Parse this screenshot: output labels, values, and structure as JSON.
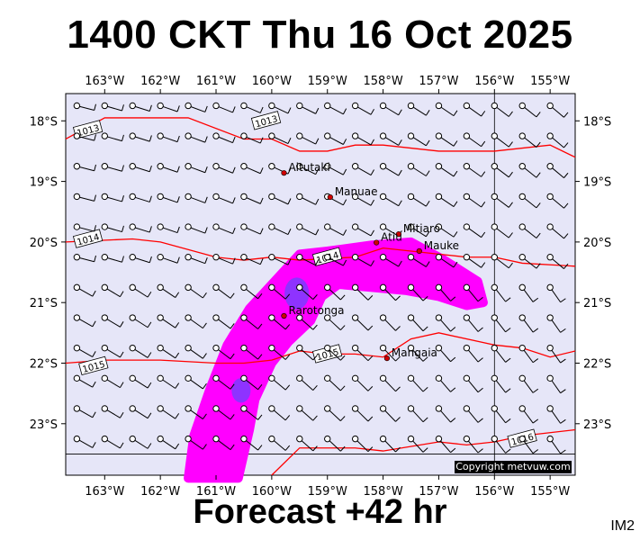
{
  "title": "1400 CKT Thu 16 Oct 2025",
  "subtitle": "Forecast +42 hr",
  "model_label": "IM2",
  "copyright": "Copyright metvuw.com",
  "colors": {
    "background": "#e6e6f8",
    "isobar": "#ff0000",
    "rain_light": "#ff00ff",
    "rain_heavy": "#7a3cff"
  },
  "lon_labels": [
    "163°W",
    "162°W",
    "161°W",
    "160°W",
    "159°W",
    "158°W",
    "157°W",
    "156°W",
    "155°W"
  ],
  "lat_labels": [
    "18°S",
    "19°S",
    "20°S",
    "21°S",
    "22°S",
    "23°S"
  ],
  "chart_data": {
    "type": "map",
    "lon_range": [
      -163.7,
      -154.55
    ],
    "lat_range": [
      -23.85,
      -17.55
    ],
    "longitudes": [
      -163,
      -162,
      -161,
      -160,
      -159,
      -158,
      -157,
      -156,
      -155
    ],
    "latitudes": [
      -18,
      -19,
      -20,
      -21,
      -22,
      -23
    ],
    "isobars": [
      {
        "label": "1013",
        "label_at": [
          -160.1,
          -18.0
        ],
        "label_at2": [
          -163.3,
          -18.15
        ],
        "points": [
          [
            -163.7,
            -18.3
          ],
          [
            -163.0,
            -17.95
          ],
          [
            -162.0,
            -17.95
          ],
          [
            -161.5,
            -17.95
          ],
          [
            -160.5,
            -18.3
          ],
          [
            -160.0,
            -18.3
          ],
          [
            -159.5,
            -18.5
          ],
          [
            -159.0,
            -18.5
          ],
          [
            -158.5,
            -18.4
          ],
          [
            -158.0,
            -18.4
          ],
          [
            -157.0,
            -18.5
          ],
          [
            -156.0,
            -18.5
          ],
          [
            -155.0,
            -18.4
          ],
          [
            -154.55,
            -18.6
          ]
        ]
      },
      {
        "label": "1014",
        "label_at": [
          -159.0,
          -20.25
        ],
        "label_at2": [
          -163.3,
          -19.95
        ],
        "points": [
          [
            -163.7,
            -20.0
          ],
          [
            -162.5,
            -19.95
          ],
          [
            -162.0,
            -20.0
          ],
          [
            -161.0,
            -20.25
          ],
          [
            -160.5,
            -20.3
          ],
          [
            -160.0,
            -20.25
          ],
          [
            -159.5,
            -20.3
          ],
          [
            -158.5,
            -20.25
          ],
          [
            -158.0,
            -20.1
          ],
          [
            -157.5,
            -20.15
          ],
          [
            -157.0,
            -20.2
          ],
          [
            -156.5,
            -20.25
          ],
          [
            -156.0,
            -20.25
          ],
          [
            -155.5,
            -20.35
          ],
          [
            -154.55,
            -20.4
          ]
        ]
      },
      {
        "label": "1015",
        "label_at": [
          -159.0,
          -21.85
        ],
        "label_at2": [
          -163.2,
          -22.05
        ],
        "points": [
          [
            -163.7,
            -22.0
          ],
          [
            -163.0,
            -21.95
          ],
          [
            -162.0,
            -21.95
          ],
          [
            -161.0,
            -22.0
          ],
          [
            -160.5,
            -22.0
          ],
          [
            -160.0,
            -21.95
          ],
          [
            -159.5,
            -21.8
          ],
          [
            -159.0,
            -21.85
          ],
          [
            -158.5,
            -21.85
          ],
          [
            -158.0,
            -21.9
          ],
          [
            -157.5,
            -21.6
          ],
          [
            -157.0,
            -21.5
          ],
          [
            -156.0,
            -21.7
          ],
          [
            -155.5,
            -21.75
          ],
          [
            -155.0,
            -21.9
          ],
          [
            -154.55,
            -21.8
          ]
        ]
      },
      {
        "label": "1016",
        "label_at": [
          -155.5,
          -23.25
        ],
        "label_at2": null,
        "points": [
          [
            -160.0,
            -23.85
          ],
          [
            -159.5,
            -23.4
          ],
          [
            -158.5,
            -23.4
          ],
          [
            -158.0,
            -23.45
          ],
          [
            -157.0,
            -23.3
          ],
          [
            -156.5,
            -23.35
          ],
          [
            -156.0,
            -23.3
          ],
          [
            -155.5,
            -23.2
          ],
          [
            -154.55,
            -23.1
          ]
        ]
      }
    ],
    "places": [
      {
        "name": "Aitutaki",
        "lon": -159.78,
        "lat": -18.86
      },
      {
        "name": "Manuae",
        "lon": -158.95,
        "lat": -19.26
      },
      {
        "name": "Mitiaro",
        "lon": -157.72,
        "lat": -19.87
      },
      {
        "name": "Atiu",
        "lon": -158.12,
        "lat": -20.01
      },
      {
        "name": "Mauke",
        "lon": -157.35,
        "lat": -20.15
      },
      {
        "name": "Rarotonga",
        "lon": -159.78,
        "lat": -21.22
      },
      {
        "name": "Mangaia",
        "lon": -157.93,
        "lat": -21.92
      }
    ],
    "rain_light": [
      [
        -161.5,
        -23.9
      ],
      [
        -161.4,
        -23.2
      ],
      [
        -161.1,
        -22.4
      ],
      [
        -160.8,
        -21.7
      ],
      [
        -160.4,
        -21.1
      ],
      [
        -159.9,
        -20.6
      ],
      [
        -159.5,
        -20.2
      ],
      [
        -159.0,
        -20.15
      ],
      [
        -158.2,
        -20.05
      ],
      [
        -157.5,
        -20.0
      ],
      [
        -156.9,
        -20.3
      ],
      [
        -156.3,
        -20.65
      ],
      [
        -156.2,
        -21.0
      ],
      [
        -156.5,
        -21.05
      ],
      [
        -157.0,
        -20.9
      ],
      [
        -157.6,
        -20.8
      ],
      [
        -158.2,
        -20.75
      ],
      [
        -158.8,
        -20.7
      ],
      [
        -159.1,
        -20.9
      ],
      [
        -159.3,
        -21.3
      ],
      [
        -159.7,
        -21.65
      ],
      [
        -160.0,
        -22.0
      ],
      [
        -160.3,
        -22.6
      ],
      [
        -160.4,
        -23.1
      ],
      [
        -160.6,
        -23.9
      ]
    ],
    "rain_heavy": [
      {
        "lon": -159.55,
        "lat": -20.85,
        "r": 0.22
      },
      {
        "lon": -160.55,
        "lat": -22.45,
        "r": 0.17
      }
    ],
    "wind_barbs": "grid of 0.5° barbs, light SE-E trades; calm circles along 23.5°S"
  }
}
